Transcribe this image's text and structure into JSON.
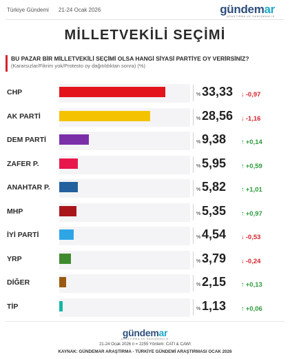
{
  "header": {
    "source_name": "Türkiye Gündemi",
    "date": "21-24 Ocak 2026",
    "brand": {
      "main": "gündem",
      "accent": "ar",
      "tagline": "ARAŞTIRMA VE DANIŞMANLIK"
    }
  },
  "page_title": "MİLLETVEKİLİ SEÇİMİ",
  "question": "BU PAZAR BİR MİLLETVEKİLİ SEÇİMİ OLSA HANGİ SİYASİ PARTİYE OY VERİRSİNİZ?",
  "note": "(Kararsızlar/Fikrim yok/Protesto oy dağıtıldıktan sonra) (%)",
  "chart_data": {
    "type": "bar",
    "orientation": "horizontal",
    "title": "MİLLETVEKİLİ SEÇİMİ",
    "xlim": [
      0,
      40
    ],
    "categories": [
      "CHP",
      "AK PARTİ",
      "DEM PARTİ",
      "ZAFER P.",
      "ANAHTAR P.",
      "MHP",
      "İYİ PARTİ",
      "YRP",
      "DİĞER",
      "TİP"
    ],
    "values": [
      33.33,
      28.56,
      9.38,
      5.95,
      5.82,
      5.35,
      4.54,
      3.79,
      2.15,
      1.13
    ],
    "value_labels": [
      "33,33",
      "28,56",
      "9,38",
      "5,95",
      "5,82",
      "5,35",
      "4,54",
      "3,79",
      "2,15",
      "1,13"
    ],
    "changes": [
      -0.97,
      -1.16,
      0.14,
      0.59,
      1.01,
      0.97,
      -0.53,
      -0.24,
      0.13,
      0.06
    ],
    "change_labels": [
      "-0,97",
      "-1,16",
      "+0,14",
      "+0,59",
      "+1,01",
      "+0,97",
      "-0,53",
      "-0,24",
      "+0,13",
      "+0,06"
    ],
    "colors": [
      "#e3141c",
      "#f5c200",
      "#7a2fa8",
      "#e8174b",
      "#24609e",
      "#a8161c",
      "#2ea6e6",
      "#3f8a2e",
      "#9a5a13",
      "#17b5a6"
    ],
    "percent_sign": "%"
  },
  "footer": {
    "meta": "21-24 Ocak 2026 n = 2255 Yöntem: CATI & CAWI",
    "source": "KAYNAK: GÜNDEMAR ARAŞTIRMA - TÜRKİYE GÜNDEMİ ARAŞTIRMASI OCAK 2026"
  },
  "colors": {
    "up": "#2e9a3e",
    "down": "#d4242b",
    "brand": "#2f4f7c",
    "brand_accent": "#1ea7c9"
  }
}
